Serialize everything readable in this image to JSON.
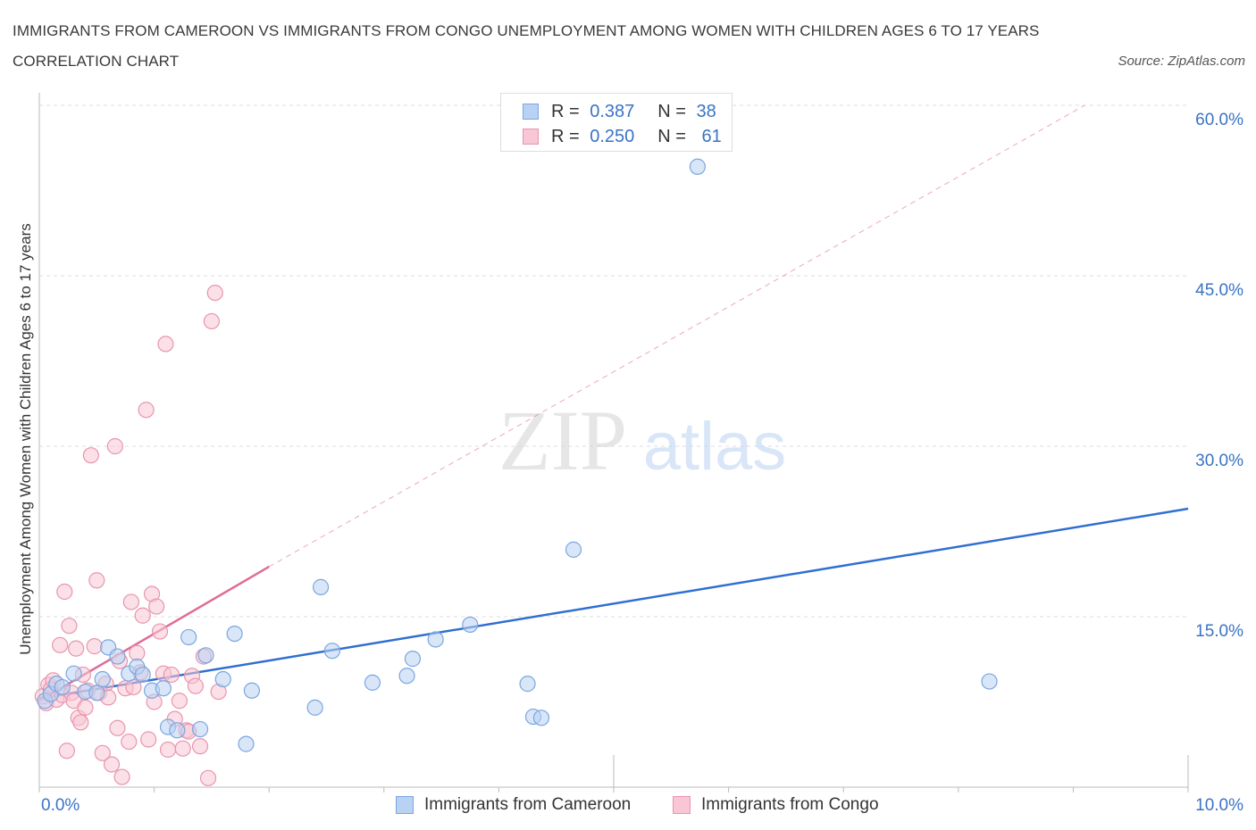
{
  "title": "IMMIGRANTS FROM CAMEROON VS IMMIGRANTS FROM CONGO UNEMPLOYMENT AMONG WOMEN WITH CHILDREN AGES 6 TO 17 YEARS CORRELATION CHART",
  "source": "Source: ZipAtlas.com",
  "watermark": {
    "zip": "ZIP",
    "atlas": "atlas"
  },
  "colors": {
    "cameroon_fill": "#b9d2f3",
    "cameroon_stroke": "#7aa6e0",
    "cameroon_line": "#2f6fd1",
    "congo_fill": "#f8c6d4",
    "congo_stroke": "#e895ae",
    "congo_line": "#e06b95",
    "axis_label": "#3a73c4",
    "grid": "#dcdcdc"
  },
  "legend": {
    "rows": [
      {
        "r_label": "R =",
        "r_value": "0.387",
        "n_label": "N =",
        "n_value": "38"
      },
      {
        "r_label": "R =",
        "r_value": "0.250",
        "n_label": "N =",
        "n_value": "61"
      }
    ]
  },
  "chart_data": {
    "type": "scatter",
    "title": "IMMIGRANTS FROM CAMEROON VS IMMIGRANTS FROM CONGO UNEMPLOYMENT AMONG WOMEN WITH CHILDREN AGES 6 TO 17 YEARS CORRELATION CHART",
    "xlabel": "",
    "ylabel": "Unemployment Among Women with Children Ages 6 to 17 years",
    "xlim": [
      0,
      10
    ],
    "ylim": [
      0,
      60
    ],
    "x_tick_labels": [
      "0.0%",
      "10.0%"
    ],
    "y_tick_labels": [
      "15.0%",
      "30.0%",
      "45.0%",
      "60.0%"
    ],
    "y_ticks": [
      15,
      30,
      45,
      60
    ],
    "legend_position": "top-center",
    "series": [
      {
        "name": "Immigrants from Cameroon",
        "R": 0.387,
        "N": 38,
        "trend": {
          "x": [
            0,
            10
          ],
          "y": [
            7.8,
            24.5
          ],
          "style": "solid"
        },
        "points": [
          {
            "x": 0.05,
            "y": 7.6
          },
          {
            "x": 0.1,
            "y": 8.2
          },
          {
            "x": 0.15,
            "y": 9.1
          },
          {
            "x": 0.2,
            "y": 8.8
          },
          {
            "x": 0.3,
            "y": 10.0
          },
          {
            "x": 0.4,
            "y": 8.4
          },
          {
            "x": 0.5,
            "y": 8.3
          },
          {
            "x": 0.55,
            "y": 9.5
          },
          {
            "x": 0.6,
            "y": 12.3
          },
          {
            "x": 0.68,
            "y": 11.5
          },
          {
            "x": 0.78,
            "y": 10.0
          },
          {
            "x": 0.85,
            "y": 10.6
          },
          {
            "x": 0.9,
            "y": 9.9
          },
          {
            "x": 0.98,
            "y": 8.5
          },
          {
            "x": 1.08,
            "y": 8.7
          },
          {
            "x": 1.12,
            "y": 5.3
          },
          {
            "x": 1.2,
            "y": 5.0
          },
          {
            "x": 1.3,
            "y": 13.2
          },
          {
            "x": 1.4,
            "y": 5.1
          },
          {
            "x": 1.45,
            "y": 11.6
          },
          {
            "x": 1.6,
            "y": 9.5
          },
          {
            "x": 1.7,
            "y": 13.5
          },
          {
            "x": 1.8,
            "y": 3.8
          },
          {
            "x": 1.85,
            "y": 8.5
          },
          {
            "x": 2.4,
            "y": 7.0
          },
          {
            "x": 2.45,
            "y": 17.6
          },
          {
            "x": 2.55,
            "y": 12.0
          },
          {
            "x": 2.9,
            "y": 9.2
          },
          {
            "x": 3.2,
            "y": 9.8
          },
          {
            "x": 3.25,
            "y": 11.3
          },
          {
            "x": 3.45,
            "y": 13.0
          },
          {
            "x": 3.75,
            "y": 14.3
          },
          {
            "x": 4.25,
            "y": 9.1
          },
          {
            "x": 4.3,
            "y": 6.2
          },
          {
            "x": 4.37,
            "y": 6.1
          },
          {
            "x": 4.65,
            "y": 20.9
          },
          {
            "x": 5.73,
            "y": 54.6
          },
          {
            "x": 8.27,
            "y": 9.3
          }
        ]
      },
      {
        "name": "Immigrants from Congo",
        "R": 0.25,
        "N": 61,
        "trend": {
          "x": [
            0,
            2.0
          ],
          "y": [
            7.6,
            19.4
          ],
          "style": "solid",
          "dashed_extension": {
            "x": [
              2.0,
              9.1
            ],
            "y": [
              19.4,
              60
            ]
          }
        },
        "points": [
          {
            "x": 0.03,
            "y": 8.0
          },
          {
            "x": 0.06,
            "y": 7.4
          },
          {
            "x": 0.08,
            "y": 9.0
          },
          {
            "x": 0.1,
            "y": 8.6
          },
          {
            "x": 0.12,
            "y": 9.4
          },
          {
            "x": 0.15,
            "y": 7.7
          },
          {
            "x": 0.18,
            "y": 12.5
          },
          {
            "x": 0.2,
            "y": 8.1
          },
          {
            "x": 0.22,
            "y": 17.2
          },
          {
            "x": 0.24,
            "y": 3.2
          },
          {
            "x": 0.26,
            "y": 14.2
          },
          {
            "x": 0.28,
            "y": 8.3
          },
          {
            "x": 0.3,
            "y": 7.6
          },
          {
            "x": 0.32,
            "y": 12.2
          },
          {
            "x": 0.34,
            "y": 6.1
          },
          {
            "x": 0.36,
            "y": 5.7
          },
          {
            "x": 0.38,
            "y": 9.9
          },
          {
            "x": 0.4,
            "y": 7.0
          },
          {
            "x": 0.42,
            "y": 8.5
          },
          {
            "x": 0.45,
            "y": 29.2
          },
          {
            "x": 0.48,
            "y": 12.4
          },
          {
            "x": 0.5,
            "y": 18.2
          },
          {
            "x": 0.52,
            "y": 8.3
          },
          {
            "x": 0.55,
            "y": 3.0
          },
          {
            "x": 0.58,
            "y": 9.1
          },
          {
            "x": 0.6,
            "y": 7.9
          },
          {
            "x": 0.63,
            "y": 2.0
          },
          {
            "x": 0.66,
            "y": 30.0
          },
          {
            "x": 0.68,
            "y": 5.2
          },
          {
            "x": 0.7,
            "y": 11.1
          },
          {
            "x": 0.72,
            "y": 0.9
          },
          {
            "x": 0.75,
            "y": 8.7
          },
          {
            "x": 0.78,
            "y": 4.0
          },
          {
            "x": 0.8,
            "y": 16.3
          },
          {
            "x": 0.82,
            "y": 8.8
          },
          {
            "x": 0.85,
            "y": 11.8
          },
          {
            "x": 0.88,
            "y": 10.1
          },
          {
            "x": 0.9,
            "y": 15.1
          },
          {
            "x": 0.93,
            "y": 33.2
          },
          {
            "x": 0.95,
            "y": 4.2
          },
          {
            "x": 0.98,
            "y": 17.0
          },
          {
            "x": 1.0,
            "y": 7.5
          },
          {
            "x": 1.02,
            "y": 15.9
          },
          {
            "x": 1.05,
            "y": 13.7
          },
          {
            "x": 1.08,
            "y": 10.0
          },
          {
            "x": 1.1,
            "y": 39.0
          },
          {
            "x": 1.12,
            "y": 3.3
          },
          {
            "x": 1.15,
            "y": 9.9
          },
          {
            "x": 1.18,
            "y": 6.0
          },
          {
            "x": 1.22,
            "y": 7.6
          },
          {
            "x": 1.25,
            "y": 3.4
          },
          {
            "x": 1.28,
            "y": 5.0
          },
          {
            "x": 1.3,
            "y": 4.9
          },
          {
            "x": 1.33,
            "y": 9.8
          },
          {
            "x": 1.36,
            "y": 8.9
          },
          {
            "x": 1.4,
            "y": 3.6
          },
          {
            "x": 1.43,
            "y": 11.5
          },
          {
            "x": 1.47,
            "y": 0.8
          },
          {
            "x": 1.5,
            "y": 41.0
          },
          {
            "x": 1.53,
            "y": 43.5
          },
          {
            "x": 1.56,
            "y": 8.4
          }
        ]
      }
    ]
  },
  "bottom_legend": {
    "cameroon_label": "Immigrants from Cameroon",
    "congo_label": "Immigrants from Congo"
  }
}
